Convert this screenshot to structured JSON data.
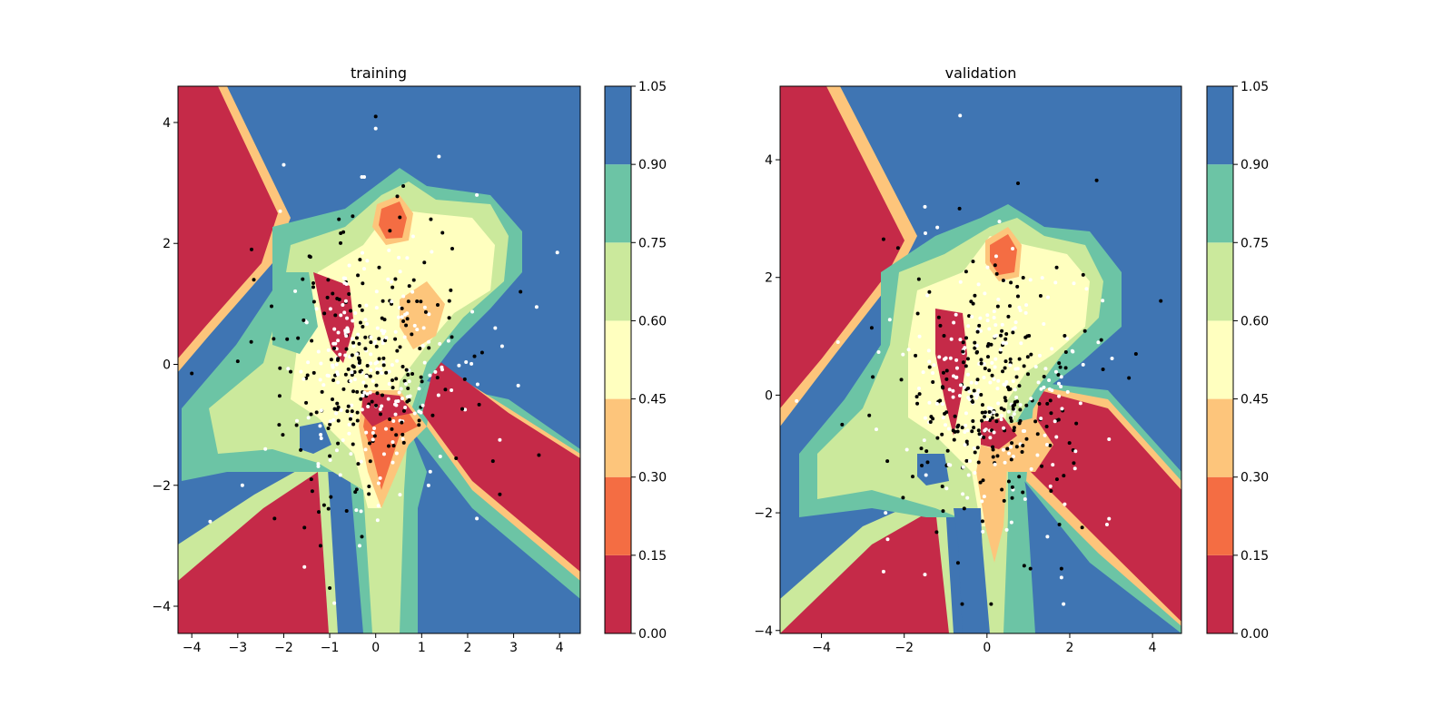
{
  "figure": {
    "palette": [
      "#c52a48",
      "#f46d43",
      "#fdc57b",
      "#ffffbf",
      "#cbe99c",
      "#6cc4a5",
      "#3f75b3"
    ],
    "colorbar_levels": [
      0.0,
      0.15,
      0.3,
      0.45,
      0.6,
      0.75,
      0.9,
      1.05
    ],
    "colorbar_tick_labels": [
      "0.00",
      "0.15",
      "0.30",
      "0.45",
      "0.60",
      "0.75",
      "0.90",
      "1.05"
    ]
  },
  "chart_data": [
    {
      "type": "contour",
      "title": "training",
      "xlim": [
        -4.3,
        4.45
      ],
      "ylim": [
        -4.45,
        4.6
      ],
      "xticks": [
        -4,
        -3,
        -2,
        -1,
        0,
        1,
        2,
        3,
        4
      ],
      "xtick_labels": [
        "−4",
        "−3",
        "−2",
        "−1",
        "0",
        "1",
        "2",
        "3",
        "4"
      ],
      "yticks": [
        -4,
        -2,
        0,
        2,
        4
      ],
      "ytick_labels": [
        "−4",
        "−2",
        "0",
        "2",
        "4"
      ],
      "points": {
        "colors": [
          "white",
          "black"
        ],
        "scattered": [
          [
            0.0,
            4.1,
            1
          ],
          [
            0.0,
            3.9,
            0
          ],
          [
            -2.0,
            3.3,
            0
          ],
          [
            -0.25,
            3.1,
            0
          ],
          [
            -0.3,
            3.1,
            0
          ],
          [
            3.95,
            1.85,
            0
          ],
          [
            3.15,
            1.2,
            1
          ],
          [
            3.5,
            0.95,
            0
          ],
          [
            -2.7,
            1.9,
            1
          ],
          [
            -2.65,
            1.4,
            1
          ],
          [
            -4.0,
            -0.15,
            1
          ],
          [
            -3.0,
            0.05,
            1
          ],
          [
            -3.6,
            -2.6,
            0
          ],
          [
            -2.2,
            -2.55,
            1
          ],
          [
            -2.9,
            -2.0,
            0
          ],
          [
            -1.55,
            -2.7,
            1
          ],
          [
            -1.2,
            -3.0,
            1
          ],
          [
            -1.55,
            -3.35,
            0
          ],
          [
            -1.0,
            -3.7,
            1
          ],
          [
            -0.9,
            -3.95,
            0
          ],
          [
            -0.3,
            -2.85,
            1
          ],
          [
            -0.35,
            -3.0,
            0
          ],
          [
            3.55,
            -1.5,
            1
          ],
          [
            2.7,
            -2.15,
            1
          ],
          [
            2.7,
            -1.25,
            0
          ],
          [
            2.55,
            -1.6,
            1
          ],
          [
            3.1,
            -0.35,
            0
          ],
          [
            2.2,
            -2.55,
            0
          ],
          [
            2.6,
            0.6,
            0
          ],
          [
            2.75,
            0.3,
            0
          ],
          [
            0.6,
            2.95,
            1
          ],
          [
            -0.5,
            2.45,
            1
          ],
          [
            -0.8,
            2.4,
            1
          ],
          [
            1.2,
            2.4,
            1
          ],
          [
            2.2,
            2.8,
            0
          ],
          [
            -1.4,
            -1.9,
            1
          ],
          [
            -2.4,
            -1.4,
            0
          ],
          [
            -2.1,
            -1.0,
            1
          ]
        ],
        "clusters": [
          {
            "cx": 0.0,
            "cy": 0.0,
            "sx": 0.9,
            "sy": 0.95,
            "n": 420,
            "seed": 11
          }
        ]
      }
    },
    {
      "type": "contour",
      "title": "validation",
      "xlim": [
        -5.0,
        4.7
      ],
      "ylim": [
        -4.05,
        5.25
      ],
      "xticks": [
        -4,
        -2,
        0,
        2,
        4
      ],
      "xtick_labels": [
        "−4",
        "−2",
        "0",
        "2",
        "4"
      ],
      "yticks": [
        -4,
        -2,
        0,
        2,
        4
      ],
      "ytick_labels": [
        "−4",
        "−2",
        "0",
        "2",
        "4"
      ],
      "points": {
        "colors": [
          "white",
          "black"
        ],
        "scattered": [
          [
            -0.65,
            4.75,
            0
          ],
          [
            0.75,
            3.6,
            1
          ],
          [
            2.65,
            3.65,
            1
          ],
          [
            4.2,
            1.6,
            1
          ],
          [
            -2.5,
            2.65,
            1
          ],
          [
            -3.6,
            0.9,
            0
          ],
          [
            -4.6,
            -0.1,
            0
          ],
          [
            -3.5,
            -0.5,
            1
          ],
          [
            3.6,
            0.7,
            1
          ],
          [
            -2.45,
            -2.0,
            0
          ],
          [
            -2.4,
            -2.45,
            0
          ],
          [
            -2.5,
            -3.0,
            0
          ],
          [
            -1.5,
            -3.05,
            0
          ],
          [
            -0.6,
            -3.55,
            1
          ],
          [
            0.1,
            -3.55,
            1
          ],
          [
            -0.7,
            -2.85,
            1
          ],
          [
            1.85,
            -3.55,
            0
          ],
          [
            1.8,
            -2.95,
            1
          ],
          [
            1.8,
            -3.1,
            0
          ],
          [
            2.95,
            -2.1,
            0
          ],
          [
            2.9,
            -2.2,
            0
          ],
          [
            1.75,
            -2.2,
            1
          ],
          [
            2.3,
            -2.25,
            1
          ],
          [
            1.05,
            -2.95,
            1
          ],
          [
            0.9,
            -2.9,
            1
          ],
          [
            2.95,
            -0.75,
            0
          ],
          [
            2.1,
            1.9,
            0
          ],
          [
            -1.5,
            3.2,
            0
          ],
          [
            -1.2,
            2.85,
            0
          ],
          [
            -2.15,
            2.5,
            1
          ],
          [
            0.3,
            2.95,
            0
          ]
        ],
        "clusters": [
          {
            "cx": 0.05,
            "cy": 0.05,
            "sx": 1.05,
            "sy": 1.0,
            "n": 440,
            "seed": 29
          }
        ]
      }
    }
  ]
}
